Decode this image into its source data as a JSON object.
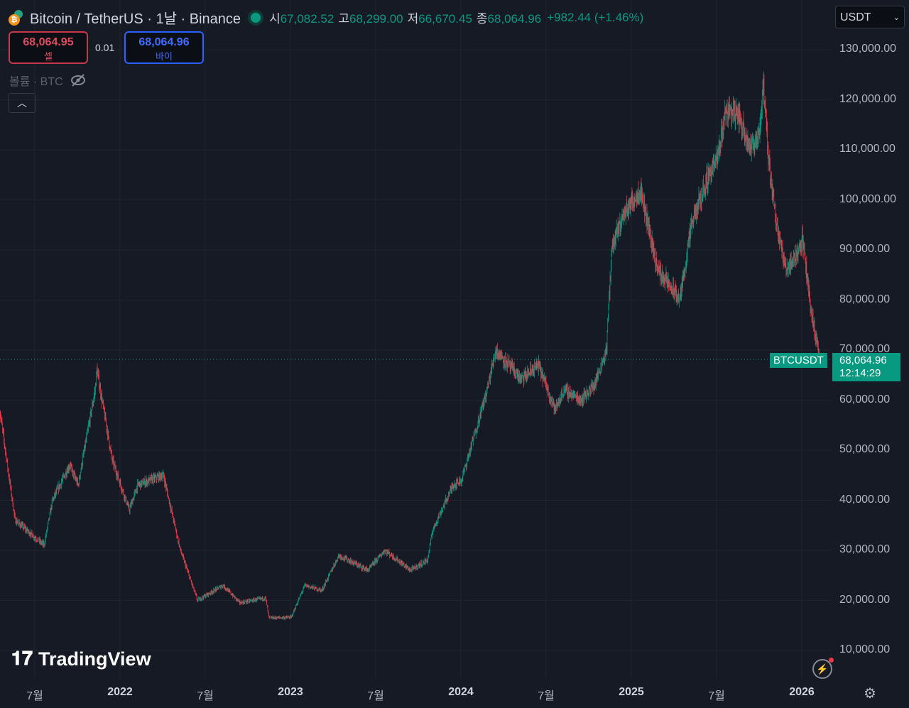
{
  "header": {
    "title": "Bitcoin / TetherUS · 1날 · Binance",
    "ohlc": [
      {
        "k": "시",
        "v": "67,082.52"
      },
      {
        "k": "고",
        "v": "68,299.00"
      },
      {
        "k": "저",
        "v": "66,670.45"
      },
      {
        "k": "종",
        "v": "68,064.96"
      }
    ],
    "change": "+982.44 (+1.46%)"
  },
  "trade": {
    "sell_price": "68,064.95",
    "sell_label": "셀",
    "spread": "0.01",
    "buy_price": "68,064.96",
    "buy_label": "바이"
  },
  "volume_label": "볼륨 · BTC",
  "currency": "USDT",
  "price_axis": [
    "130,000.00",
    "120,000.00",
    "110,000.00",
    "100,000.00",
    "90,000.00",
    "80,000.00",
    "70,000.00",
    "60,000.00",
    "50,000.00",
    "40,000.00",
    "30,000.00",
    "20,000.00",
    "10,000.00"
  ],
  "time_axis": [
    {
      "t": "7월",
      "y": false
    },
    {
      "t": "2022",
      "y": true
    },
    {
      "t": "7월",
      "y": false
    },
    {
      "t": "2023",
      "y": true
    },
    {
      "t": "7월",
      "y": false
    },
    {
      "t": "2024",
      "y": true
    },
    {
      "t": "7월",
      "y": false
    },
    {
      "t": "2025",
      "y": true
    },
    {
      "t": "7월",
      "y": false
    },
    {
      "t": "2026",
      "y": true
    }
  ],
  "last": {
    "symbol": "BTCUSDT",
    "price": "68,064.96",
    "countdown": "12:14:29"
  },
  "logo": "TradingView",
  "colors": {
    "up": "#089981",
    "down": "#f23645",
    "bg": "#161a25"
  },
  "chart_data": {
    "type": "candlestick",
    "interval": "1D",
    "ylim": [
      10000,
      130000
    ],
    "price_path": [
      [
        2021.29,
        58000
      ],
      [
        2021.38,
        36000
      ],
      [
        2021.55,
        31000
      ],
      [
        2021.6,
        40000
      ],
      [
        2021.7,
        47000
      ],
      [
        2021.75,
        43000
      ],
      [
        2021.85,
        62000
      ],
      [
        2021.86,
        66000
      ],
      [
        2021.95,
        48000
      ],
      [
        2022.05,
        38000
      ],
      [
        2022.1,
        43000
      ],
      [
        2022.25,
        45000
      ],
      [
        2022.35,
        30000
      ],
      [
        2022.45,
        20000
      ],
      [
        2022.6,
        23000
      ],
      [
        2022.7,
        19500
      ],
      [
        2022.85,
        20500
      ],
      [
        2022.87,
        16500
      ],
      [
        2023.0,
        16600
      ],
      [
        2023.08,
        23000
      ],
      [
        2023.18,
        22000
      ],
      [
        2023.28,
        29000
      ],
      [
        2023.45,
        26000
      ],
      [
        2023.55,
        30000
      ],
      [
        2023.7,
        26000
      ],
      [
        2023.8,
        28000
      ],
      [
        2023.83,
        34000
      ],
      [
        2023.95,
        43000
      ],
      [
        2024.0,
        44000
      ],
      [
        2024.15,
        62000
      ],
      [
        2024.2,
        70000
      ],
      [
        2024.35,
        64000
      ],
      [
        2024.45,
        67000
      ],
      [
        2024.55,
        58000
      ],
      [
        2024.6,
        62000
      ],
      [
        2024.7,
        60000
      ],
      [
        2024.78,
        63000
      ],
      [
        2024.85,
        70000
      ],
      [
        2024.88,
        90000
      ],
      [
        2024.95,
        97000
      ],
      [
        2025.05,
        102000
      ],
      [
        2025.15,
        86000
      ],
      [
        2025.28,
        80000
      ],
      [
        2025.35,
        95000
      ],
      [
        2025.45,
        105000
      ],
      [
        2025.5,
        108000
      ],
      [
        2025.55,
        118000
      ],
      [
        2025.62,
        117000
      ],
      [
        2025.7,
        110000
      ],
      [
        2025.75,
        114000
      ],
      [
        2025.77,
        123000
      ],
      [
        2025.8,
        108000
      ],
      [
        2025.85,
        95000
      ],
      [
        2025.9,
        86000
      ],
      [
        2025.95,
        88000
      ],
      [
        2026.0,
        92000
      ],
      [
        2026.05,
        78000
      ],
      [
        2026.1,
        68065
      ]
    ]
  }
}
